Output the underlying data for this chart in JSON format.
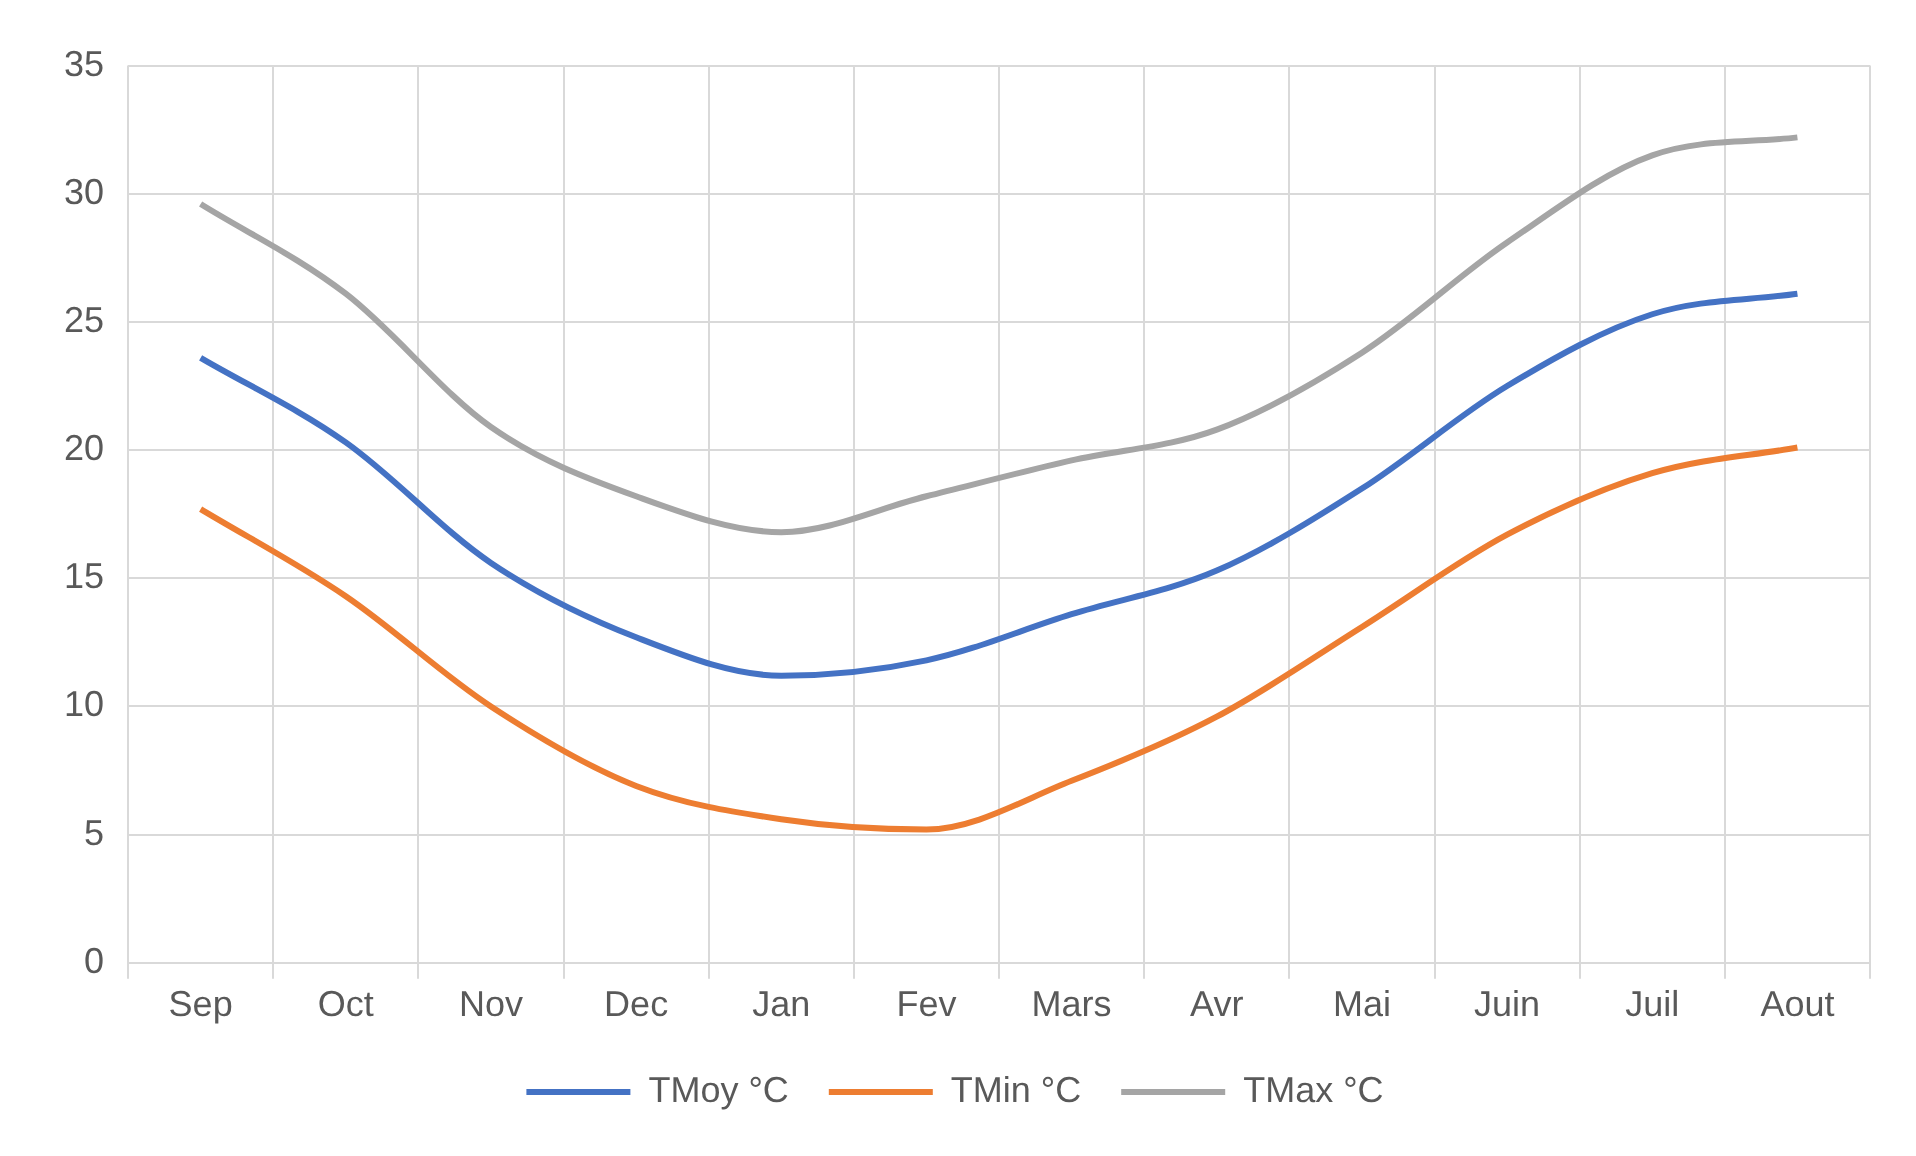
{
  "chart_data": {
    "type": "line",
    "categories": [
      "Sep",
      "Oct",
      "Nov",
      "Dec",
      "Jan",
      "Fev",
      "Mars",
      "Avr",
      "Mai",
      "Juin",
      "Juil",
      "Aout"
    ],
    "series": [
      {
        "name": "TMoy °C",
        "color": "#4472c4",
        "values": [
          23.6,
          20.3,
          15.6,
          12.7,
          11.2,
          11.8,
          13.6,
          15.3,
          18.5,
          22.5,
          25.3,
          26.1
        ]
      },
      {
        "name": "TMin °C",
        "color": "#ed7d31",
        "values": [
          17.7,
          14.3,
          10.0,
          6.9,
          5.6,
          5.2,
          7.1,
          9.6,
          13.1,
          16.7,
          19.1,
          20.1
        ]
      },
      {
        "name": "TMax °C",
        "color": "#a5a5a5",
        "values": [
          29.6,
          26.1,
          20.9,
          18.2,
          16.8,
          18.2,
          19.6,
          20.8,
          23.8,
          28.1,
          31.5,
          32.2
        ]
      }
    ],
    "ylim": [
      0,
      35
    ],
    "yticks": [
      0,
      5,
      10,
      15,
      20,
      25,
      30,
      35
    ],
    "grid": true,
    "legend": "bottom",
    "marker": "none",
    "line_style": "solid"
  }
}
